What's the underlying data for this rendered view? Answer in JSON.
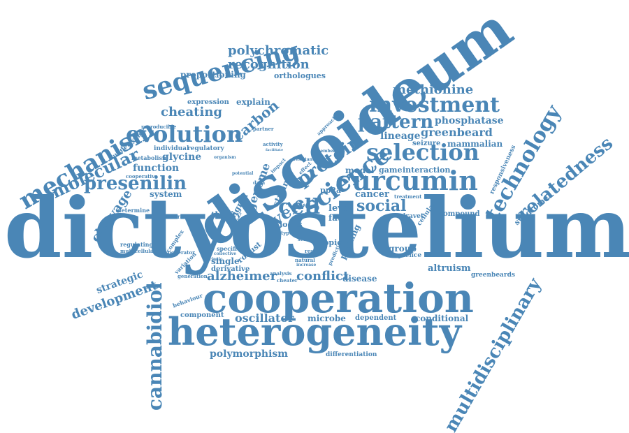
{
  "accent_color": "#4a86b6",
  "words": {
    "dictyostelium": "dictyostelium",
    "discoideum": "discoideum",
    "cooperation": "cooperation",
    "heterogeneity": "heterogeneity",
    "curcumin": "curcumin",
    "science": "science",
    "sequencing": "sequencing",
    "evolution": "evolution",
    "mechanism": "mechanism",
    "selection": "selection",
    "investment": "investment",
    "technology": "technology",
    "relatedness": "relatedness",
    "multidisciplinary": "multidisciplinary",
    "cannabidiol": "cannabidiol",
    "presenilin": "presenilin",
    "molecular": "molecular",
    "protein": "protein",
    "pattern": "pattern",
    "cycle": "cycle",
    "cell": "cell",
    "social": "social",
    "alzheimer": "alzheimer",
    "conflict": "conflict",
    "development": "development",
    "polychromatic": "polychromatic",
    "recognition": "recognition",
    "methionine": "methionine",
    "carbon": "carbon",
    "cheating": "cheating",
    "greenbeard": "greenbeard",
    "genome": "genome",
    "oscillator": "oscillator",
    "polymorphism": "polymorphism",
    "cleavage": "cleavage",
    "strategic": "strategic",
    "phosphatase": "phosphatase",
    "lineage": "lineage",
    "mammalian": "mammalian",
    "glycine": "glycine",
    "function": "function",
    "system": "system",
    "explain": "explain",
    "proportioning": "proportioning",
    "orthologues": "orthologues",
    "expression": "expression",
    "reproducible": "reproducible",
    "underlying": "underlying",
    "individual": "individual",
    "regulatory": "regulatory",
    "metabolism": "metabolism",
    "cooperative": "cooperative",
    "determine": "determine",
    "generate": "generate",
    "regulating": "regulating",
    "multicellular": "multicellular",
    "model": "model",
    "game": "game",
    "interaction": "interaction",
    "cancer": "cancer",
    "level": "level",
    "fate": "fate",
    "pp2a": "pp2a",
    "theory": "theory",
    "signal": "signal",
    "strain": "strain",
    "locus": "locus",
    "priming": "priming",
    "topic": "topic",
    "group": "group",
    "sequence": "sequence",
    "altruism": "altruism",
    "greenbeards": "greenbeards",
    "disease": "disease",
    "component": "component",
    "microbe": "microbe",
    "dependent": "dependent",
    "conditional": "conditional",
    "differentiation": "differentiation",
    "compound": "compound",
    "syndrome": "syndrome",
    "dravet": "dravet",
    "cellular": "cellular",
    "treatment": "treatment",
    "seizure": "seizure",
    "responsiveness": "responsiveness",
    "single": "single",
    "derivative": "derivative",
    "specific": "specific",
    "collective": "collective",
    "variation": "variation",
    "generation": "generation",
    "behaviour": "behaviour",
    "complex": "complex",
    "cooperator": "cooperator",
    "robust": "robust",
    "analysis": "analysis",
    "cheater": "cheater",
    "natural": "natural",
    "increase": "increase",
    "result": "result",
    "prediction": "prediction",
    "activity": "activity",
    "facilitate": "facilitate",
    "partner": "partner",
    "approach": "approach",
    "data": "data",
    "self": "self",
    "type": "type",
    "impact": "impact",
    "effect": "effect",
    "potential": "potential",
    "organism": "organism",
    "member": "member",
    "resistant": "resistant",
    "intrinsic": "intrinsic"
  }
}
